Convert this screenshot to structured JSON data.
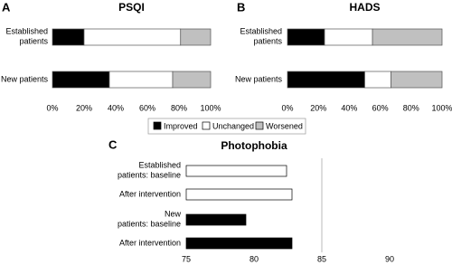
{
  "chart_data": [
    {
      "type": "bar",
      "orientation": "horizontal",
      "stacked": true,
      "panel": "A",
      "title": "PSQI",
      "categories": [
        "Established\npatients",
        "New patients"
      ],
      "series": [
        {
          "name": "Improved",
          "color": "#000000",
          "values": [
            20,
            36
          ]
        },
        {
          "name": "Unchanged",
          "color": "#ffffff",
          "values": [
            61,
            40
          ]
        },
        {
          "name": "Worsened",
          "color": "#c0c0c0",
          "values": [
            19,
            24
          ]
        }
      ],
      "xlim": [
        0,
        100
      ],
      "xticks": [
        {
          "value": 0,
          "label": "0%"
        },
        {
          "value": 20,
          "label": "20%"
        },
        {
          "value": 40,
          "label": "40%"
        },
        {
          "value": 60,
          "label": "60%"
        },
        {
          "value": 80,
          "label": "80%"
        },
        {
          "value": 100,
          "label": "100%"
        }
      ]
    },
    {
      "type": "bar",
      "orientation": "horizontal",
      "stacked": true,
      "panel": "B",
      "title": "HADS",
      "categories": [
        "Established\npatients",
        "New patients"
      ],
      "series": [
        {
          "color": "#000000",
          "values": [
            24,
            50
          ]
        },
        {
          "color": "#ffffff",
          "values": [
            31,
            17
          ]
        },
        {
          "color": "#c0c0c0",
          "values": [
            45,
            33
          ]
        }
      ],
      "xlim": [
        0,
        100
      ],
      "xticks": [
        {
          "value": 0,
          "label": "0%"
        },
        {
          "value": 20,
          "label": "20%"
        },
        {
          "value": 40,
          "label": "40%"
        },
        {
          "value": 60,
          "label": "60%"
        },
        {
          "value": 80,
          "label": "80%"
        },
        {
          "value": 100,
          "label": "100%"
        }
      ]
    },
    {
      "type": "bar",
      "orientation": "horizontal",
      "stacked": false,
      "panel": "C",
      "title": "Photophobia",
      "categories": [
        "Established\npatients: baseline",
        "After intervention",
        "New\npatients: baseline",
        "After intervention"
      ],
      "values": [
        82.4,
        82.8,
        79.4,
        82.8
      ],
      "colors": [
        "#ffffff",
        "#ffffff",
        "#000000",
        "#000000"
      ],
      "reference_line": 85,
      "xlim": [
        75,
        94
      ],
      "xticks": [
        75,
        80,
        85,
        90
      ]
    }
  ]
}
